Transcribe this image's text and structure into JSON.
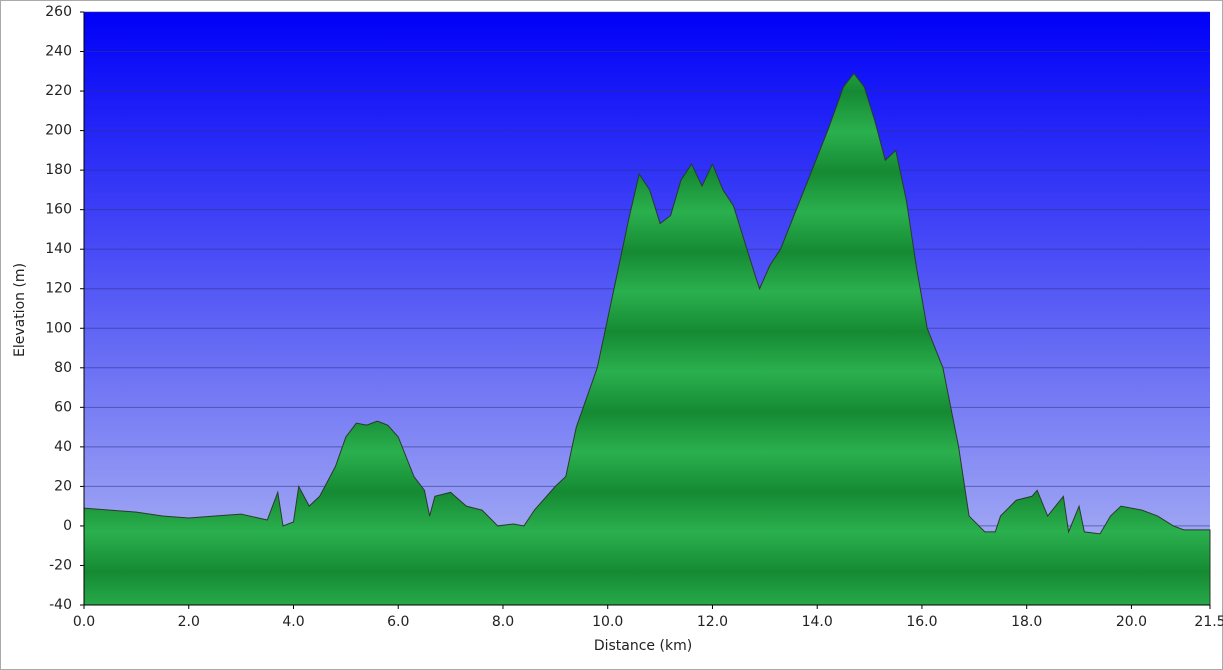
{
  "chart_data": {
    "type": "area",
    "x_label": "Distance (km)",
    "y_label": "Elevation (m)",
    "xlim": [
      0,
      21.5
    ],
    "ylim": [
      -40,
      260
    ],
    "xticks": [
      {
        "value": 0,
        "label": "0.0"
      },
      {
        "value": 2,
        "label": "2.0"
      },
      {
        "value": 4,
        "label": "4.0"
      },
      {
        "value": 6,
        "label": "6.0"
      },
      {
        "value": 8,
        "label": "8.0"
      },
      {
        "value": 10,
        "label": "10.0"
      },
      {
        "value": 12,
        "label": "12.0"
      },
      {
        "value": 14,
        "label": "14.0"
      },
      {
        "value": 16,
        "label": "16.0"
      },
      {
        "value": 18,
        "label": "18.0"
      },
      {
        "value": 20,
        "label": "20.0"
      },
      21.5
    ],
    "yticks": [
      -40,
      -20,
      0,
      20,
      40,
      60,
      80,
      100,
      120,
      140,
      160,
      180,
      200,
      220,
      240,
      260
    ],
    "grid": true,
    "color": "#1fa040",
    "x": [
      0,
      1.0,
      1.5,
      2.0,
      2.5,
      3.0,
      3.5,
      3.7,
      3.8,
      4.0,
      4.1,
      4.3,
      4.5,
      4.8,
      5.0,
      5.2,
      5.4,
      5.6,
      5.8,
      6.0,
      6.3,
      6.5,
      6.6,
      6.7,
      7.0,
      7.3,
      7.6,
      7.9,
      8.2,
      8.4,
      8.6,
      9.0,
      9.2,
      9.4,
      9.6,
      9.8,
      10.0,
      10.2,
      10.4,
      10.6,
      10.8,
      11.0,
      11.2,
      11.4,
      11.6,
      11.8,
      12.0,
      12.2,
      12.4,
      12.6,
      12.8,
      12.9,
      13.1,
      13.3,
      13.6,
      13.9,
      14.2,
      14.5,
      14.7,
      14.9,
      15.1,
      15.3,
      15.5,
      15.7,
      15.9,
      16.1,
      16.4,
      16.7,
      16.9,
      17.2,
      17.4,
      17.5,
      17.8,
      18.1,
      18.2,
      18.4,
      18.7,
      18.8,
      19.0,
      19.1,
      19.4,
      19.6,
      19.8,
      20.2,
      20.5,
      20.8,
      21.0,
      21.5
    ],
    "values": [
      9,
      7,
      5,
      4,
      5,
      6,
      3,
      17,
      0,
      2,
      20,
      10,
      15,
      30,
      45,
      52,
      51,
      53,
      51,
      45,
      25,
      18,
      5,
      15,
      17,
      10,
      8,
      0,
      1,
      0,
      8,
      20,
      25,
      50,
      65,
      80,
      105,
      130,
      155,
      178,
      170,
      153,
      157,
      175,
      183,
      172,
      183,
      170,
      162,
      145,
      128,
      120,
      132,
      140,
      160,
      180,
      200,
      222,
      229,
      222,
      205,
      185,
      190,
      165,
      130,
      100,
      80,
      40,
      5,
      -3,
      -3,
      5,
      13,
      15,
      18,
      5,
      15,
      -3,
      10,
      -3,
      -4,
      5,
      10,
      8,
      5,
      0,
      -2,
      -2
    ]
  }
}
